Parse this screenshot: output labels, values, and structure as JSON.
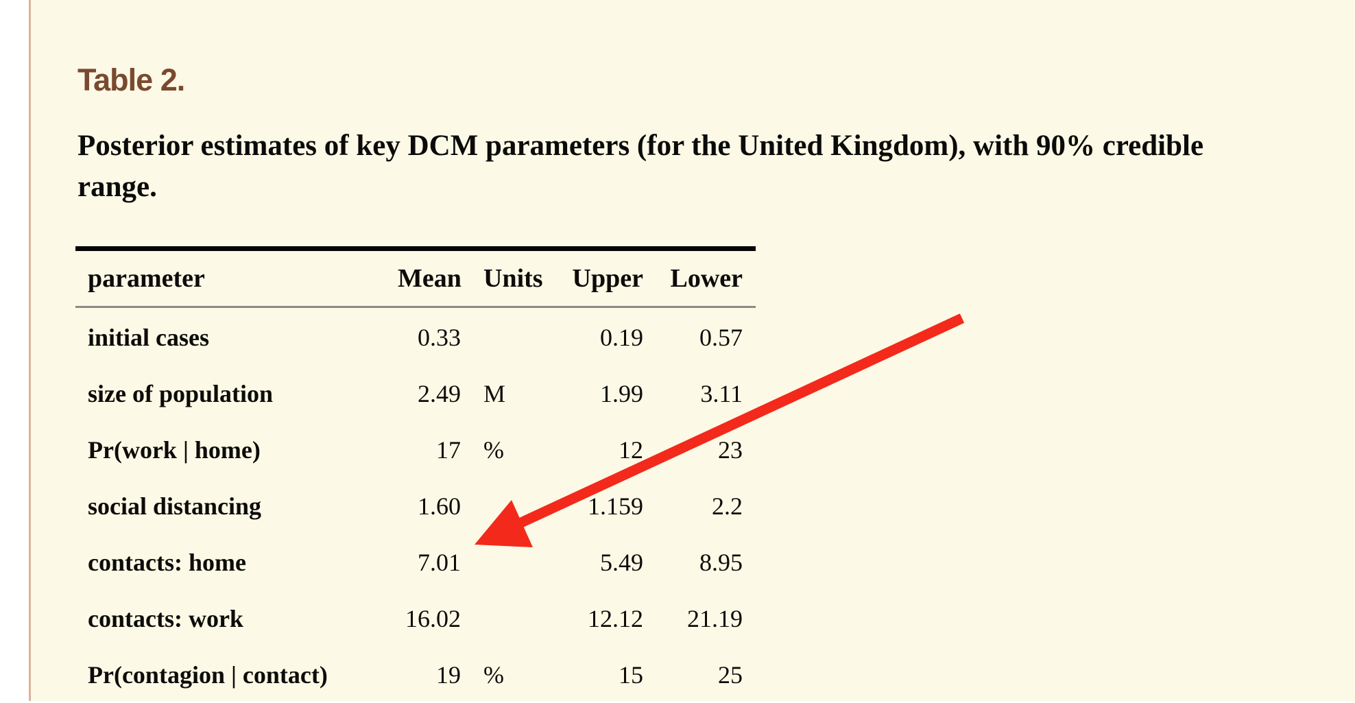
{
  "page": {
    "background_color": "#FCF9E6",
    "left_border_color": "#DCB29A"
  },
  "header": {
    "title": "Table 2.",
    "title_color": "#7A492E",
    "caption_line1": "Posterior estimates of key DCM parameters (for the United Kingdom), with 90% credible",
    "caption_line2": "range."
  },
  "table": {
    "columns": [
      "parameter",
      "Mean",
      "Units",
      "Upper",
      "Lower"
    ],
    "field_keys": [
      "parameter",
      "mean",
      "units",
      "upper",
      "lower"
    ],
    "rows": [
      {
        "parameter": "initial cases",
        "mean": "0.33",
        "units": "",
        "upper": "0.19",
        "lower": "0.57"
      },
      {
        "parameter": "size of population",
        "mean": "2.49",
        "units": "M",
        "upper": "1.99",
        "lower": "3.11"
      },
      {
        "parameter": "Pr(work | home)",
        "mean": "17",
        "units": "%",
        "upper": "12",
        "lower": "23"
      },
      {
        "parameter": "social distancing",
        "mean": "1.60",
        "units": "",
        "upper": "1.159",
        "lower": "2.2"
      },
      {
        "parameter": "contacts: home",
        "mean": "7.01",
        "units": "",
        "upper": "5.49",
        "lower": "8.95"
      },
      {
        "parameter": "contacts: work",
        "mean": "16.02",
        "units": "",
        "upper": "12.12",
        "lower": "21.19"
      },
      {
        "parameter": "Pr(contagion | contact)",
        "mean": "19",
        "units": "%",
        "upper": "15",
        "lower": "25"
      }
    ]
  },
  "annotation": {
    "arrow_color": "#F3291B",
    "points_to": "7.01"
  }
}
